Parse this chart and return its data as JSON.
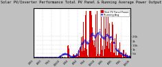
{
  "title": "Solar PV/Inverter Performance Total PV Panel & Running Average Power Output",
  "bar_color": "#dd0000",
  "avg_color": "#0000cc",
  "bg_color": "#c0c0c0",
  "plot_bg": "#ffffff",
  "grid_color": "#aaaaaa",
  "legend_bar_label": "Total PV Panel Power",
  "legend_avg_label": "Running Avg",
  "n_points": 520,
  "title_fontsize": 3.8,
  "tick_fontsize": 2.8,
  "legend_fontsize": 2.5
}
